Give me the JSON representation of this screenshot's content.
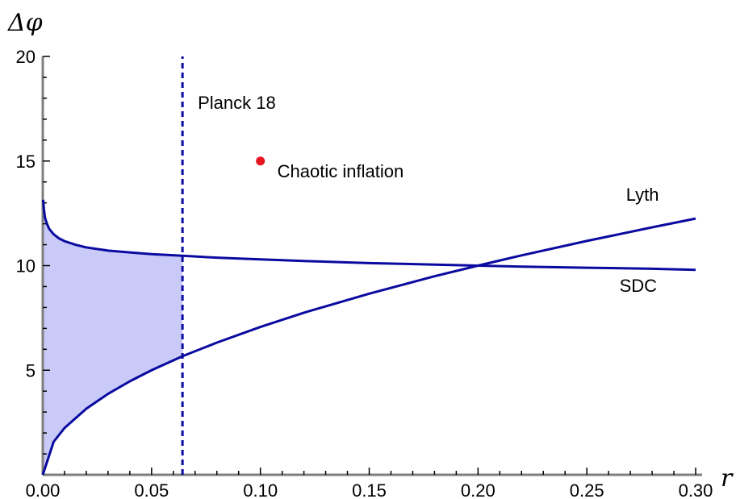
{
  "chart_data": {
    "type": "line",
    "xlabel": "r",
    "ylabel": "Δφ",
    "xlim": [
      0,
      0.3
    ],
    "ylim": [
      0,
      20
    ],
    "x_ticks": [
      "0.00",
      "0.05",
      "0.10",
      "0.15",
      "0.20",
      "0.25",
      "0.30"
    ],
    "y_ticks": [
      "5",
      "10",
      "15",
      "20"
    ],
    "series": [
      {
        "name": "Lyth",
        "color": "#0a0aa0",
        "x": [
          0,
          0.005,
          0.01,
          0.02,
          0.03,
          0.04,
          0.05,
          0.0642,
          0.08,
          0.1,
          0.12,
          0.15,
          0.18,
          0.2,
          0.22,
          0.25,
          0.28,
          0.3
        ],
        "y": [
          0,
          1.58,
          2.24,
          3.16,
          3.87,
          4.47,
          5.0,
          5.67,
          6.32,
          7.07,
          7.75,
          8.66,
          9.49,
          10.0,
          10.49,
          11.18,
          11.83,
          12.25
        ]
      },
      {
        "name": "SDC",
        "color": "#0a0aa0",
        "x": [
          0.0002,
          0.0005,
          0.001,
          0.002,
          0.003,
          0.005,
          0.0075,
          0.01,
          0.015,
          0.02,
          0.03,
          0.04,
          0.05,
          0.0642,
          0.08,
          0.1,
          0.12,
          0.15,
          0.18,
          0.2,
          0.22,
          0.25,
          0.28,
          0.3
        ],
        "y": [
          13.15,
          12.72,
          12.3,
          11.98,
          11.75,
          11.5,
          11.3,
          11.17,
          11.0,
          10.87,
          10.72,
          10.63,
          10.55,
          10.47,
          10.38,
          10.3,
          10.22,
          10.12,
          10.05,
          10.0,
          9.95,
          9.9,
          9.85,
          9.8
        ]
      }
    ],
    "vline": {
      "label": "Planck 18",
      "x": 0.0642,
      "color": "#0a0aa0",
      "style": "dashed"
    },
    "point": {
      "label": "Chaotic inflation",
      "x": 0.1,
      "y": 15,
      "color": "#e8141e"
    },
    "shaded_region": {
      "x_from": 0,
      "x_to": 0.0642,
      "between": [
        "Lyth",
        "SDC"
      ],
      "color": "#c9caf7"
    },
    "series_labels": [
      {
        "text": "Lyth",
        "x": 0.268,
        "y": 13.1
      },
      {
        "text": "SDC",
        "x": 0.265,
        "y": 8.75
      }
    ]
  }
}
